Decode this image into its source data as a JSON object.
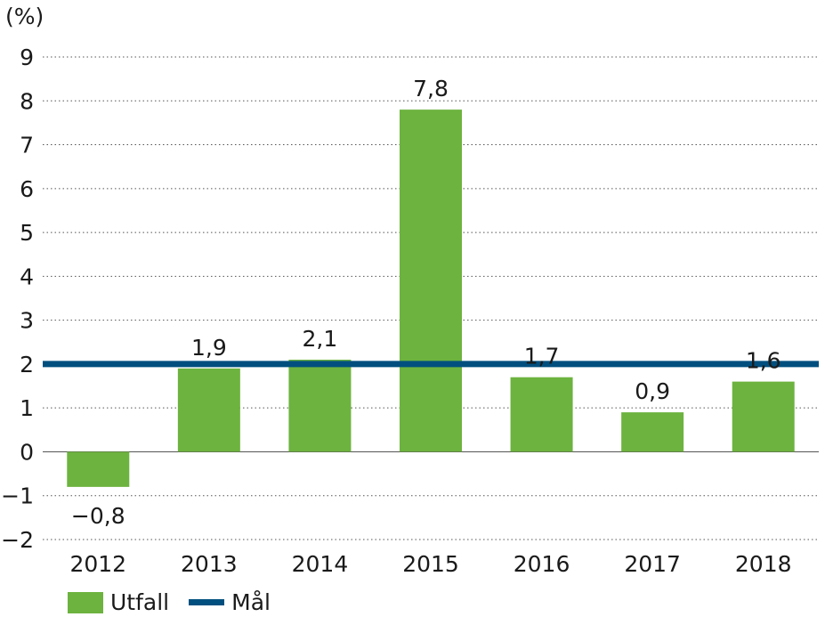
{
  "chart_data": {
    "type": "bar",
    "unit_label": "(%)",
    "categories": [
      "2012",
      "2013",
      "2014",
      "2015",
      "2016",
      "2017",
      "2018"
    ],
    "series": [
      {
        "name": "Utfall",
        "type": "bar",
        "values": [
          -0.8,
          1.9,
          2.1,
          7.8,
          1.7,
          0.9,
          1.6
        ],
        "data_labels": [
          "−0,8",
          "1,9",
          "2,1",
          "7,8",
          "1,7",
          "0,9",
          "1,6"
        ]
      },
      {
        "name": "Mål",
        "type": "line",
        "value": 2
      }
    ],
    "yticks": [
      "−2",
      "−1",
      "0",
      "1",
      "2",
      "3",
      "4",
      "5",
      "6",
      "7",
      "8",
      "9"
    ],
    "ylim": [
      -2,
      9
    ],
    "grid": true,
    "legend_position": "bottom-left",
    "colors": {
      "bar": "#6db33f",
      "target": "#004f7f",
      "grid": "#555555"
    }
  }
}
